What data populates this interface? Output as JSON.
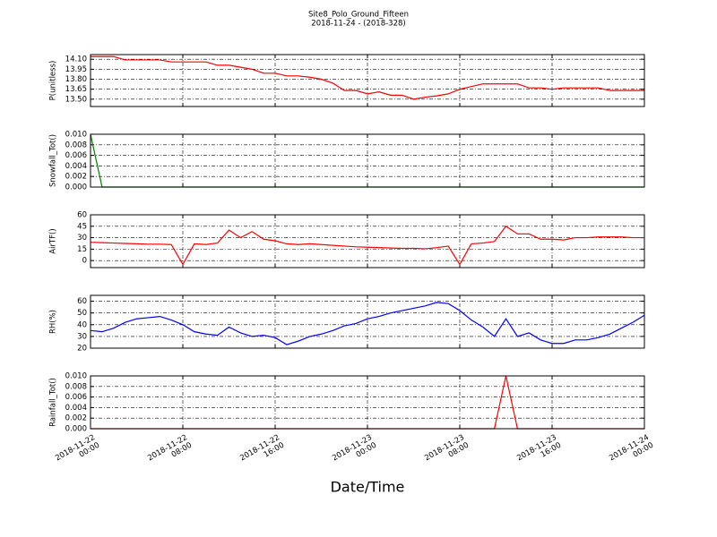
{
  "chart_data": [
    {
      "type": "line",
      "title": "Site8_Polo_Ground_Fifteen",
      "subtitle": "2018-11-24 - (2018-328)",
      "y_label": "P(unitless)",
      "color": "#ff0000",
      "grid": true,
      "xlim": [
        "2018-11-22 00:00",
        "2018-11-24 00:00"
      ],
      "ylim": [
        13.39,
        14.17
      ],
      "yticks": [
        {
          "value": 13.5,
          "label": "13.50"
        },
        13.65,
        {
          "value": 13.8,
          "label": "13.80"
        },
        13.95,
        {
          "value": 14.1,
          "label": "14.10"
        }
      ],
      "x": [
        "2018-11-22 00:00",
        "2018-11-22 01:00",
        "2018-11-22 02:00",
        "2018-11-22 03:00",
        "2018-11-22 04:00",
        "2018-11-22 05:00",
        "2018-11-22 06:00",
        "2018-11-22 07:00",
        "2018-11-22 08:00",
        "2018-11-22 09:00",
        "2018-11-22 10:00",
        "2018-11-22 11:00",
        "2018-11-22 12:00",
        "2018-11-22 13:00",
        "2018-11-22 14:00",
        "2018-11-22 15:00",
        "2018-11-22 16:00",
        "2018-11-22 17:00",
        "2018-11-22 18:00",
        "2018-11-22 19:00",
        "2018-11-22 20:00",
        "2018-11-22 21:00",
        "2018-11-22 22:00",
        "2018-11-22 23:00",
        "2018-11-23 00:00",
        "2018-11-23 01:00",
        "2018-11-23 02:00",
        "2018-11-23 03:00",
        "2018-11-23 04:00",
        "2018-11-23 05:00",
        "2018-11-23 06:00",
        "2018-11-23 07:00",
        "2018-11-23 08:00",
        "2018-11-23 09:00",
        "2018-11-23 10:00",
        "2018-11-23 11:00",
        "2018-11-23 12:00",
        "2018-11-23 13:00",
        "2018-11-23 14:00",
        "2018-11-23 15:00",
        "2018-11-23 16:00",
        "2018-11-23 17:00",
        "2018-11-23 18:00",
        "2018-11-23 19:00",
        "2018-11-23 20:00",
        "2018-11-23 21:00",
        "2018-11-23 22:00",
        "2018-11-23 23:00",
        "2018-11-24 00:00"
      ],
      "values": [
        14.14,
        14.14,
        14.14,
        14.09,
        14.09,
        14.09,
        14.09,
        14.06,
        14.06,
        14.06,
        14.06,
        14.01,
        14.01,
        13.98,
        13.95,
        13.89,
        13.89,
        13.85,
        13.85,
        13.83,
        13.8,
        13.74,
        13.63,
        13.63,
        13.58,
        13.61,
        13.56,
        13.56,
        13.5,
        13.53,
        13.55,
        13.58,
        13.65,
        13.69,
        13.73,
        13.73,
        13.73,
        13.73,
        13.67,
        13.67,
        13.65,
        13.67,
        13.67,
        13.67,
        13.67,
        13.63,
        13.63,
        13.63,
        13.63
      ]
    },
    {
      "type": "line",
      "y_label": "Snowfall_Tot()",
      "color": "#008000",
      "grid": true,
      "xlim": [
        "2018-11-22 00:00",
        "2018-11-24 00:00"
      ],
      "ylim": [
        0,
        0.01
      ],
      "yticks": [
        {
          "value": 0,
          "label": "0.000"
        },
        {
          "value": 0.002,
          "label": "0.002"
        },
        {
          "value": 0.004,
          "label": "0.004"
        },
        {
          "value": 0.006,
          "label": "0.006"
        },
        {
          "value": 0.008,
          "label": "0.008"
        },
        {
          "value": 0.01,
          "label": "0.010"
        }
      ],
      "x": [
        "2018-11-22 00:00",
        "2018-11-22 01:00",
        "2018-11-22 02:00",
        "2018-11-22 03:00",
        "2018-11-22 04:00",
        "2018-11-22 05:00",
        "2018-11-22 06:00",
        "2018-11-22 07:00",
        "2018-11-22 08:00",
        "2018-11-22 09:00",
        "2018-11-22 10:00",
        "2018-11-22 11:00",
        "2018-11-22 12:00",
        "2018-11-22 13:00",
        "2018-11-22 14:00",
        "2018-11-22 15:00",
        "2018-11-22 16:00",
        "2018-11-22 17:00",
        "2018-11-22 18:00",
        "2018-11-22 19:00",
        "2018-11-22 20:00",
        "2018-11-22 21:00",
        "2018-11-22 22:00",
        "2018-11-22 23:00",
        "2018-11-23 00:00",
        "2018-11-23 01:00",
        "2018-11-23 02:00",
        "2018-11-23 03:00",
        "2018-11-23 04:00",
        "2018-11-23 05:00",
        "2018-11-23 06:00",
        "2018-11-23 07:00",
        "2018-11-23 08:00",
        "2018-11-23 09:00",
        "2018-11-23 10:00",
        "2018-11-23 11:00",
        "2018-11-23 12:00",
        "2018-11-23 13:00",
        "2018-11-23 14:00",
        "2018-11-23 15:00",
        "2018-11-23 16:00",
        "2018-11-23 17:00",
        "2018-11-23 18:00",
        "2018-11-23 19:00",
        "2018-11-23 20:00",
        "2018-11-23 21:00",
        "2018-11-23 22:00",
        "2018-11-23 23:00",
        "2018-11-24 00:00"
      ],
      "values": [
        0.01,
        0,
        0,
        0,
        0,
        0,
        0,
        0,
        0,
        0,
        0,
        0,
        0,
        0,
        0,
        0,
        0,
        0,
        0,
        0,
        0,
        0,
        0,
        0,
        0,
        0,
        0,
        0,
        0,
        0,
        0,
        0,
        0,
        0,
        0,
        0,
        0,
        0,
        0,
        0,
        0,
        0,
        0,
        0,
        0,
        0,
        0,
        0,
        0
      ]
    },
    {
      "type": "line",
      "y_label": "AirTF()",
      "color": "#ff0000",
      "grid": true,
      "xlim": [
        "2018-11-22 00:00",
        "2018-11-24 00:00"
      ],
      "ylim": [
        -9.2,
        60
      ],
      "yticks": [
        0,
        15,
        30,
        45,
        60
      ],
      "x": [
        "2018-11-22 00:00",
        "2018-11-22 01:00",
        "2018-11-22 02:00",
        "2018-11-22 03:00",
        "2018-11-22 04:00",
        "2018-11-22 05:00",
        "2018-11-22 06:00",
        "2018-11-22 07:00",
        "2018-11-22 08:00",
        "2018-11-22 09:00",
        "2018-11-22 10:00",
        "2018-11-22 11:00",
        "2018-11-22 12:00",
        "2018-11-22 13:00",
        "2018-11-22 14:00",
        "2018-11-22 15:00",
        "2018-11-22 16:00",
        "2018-11-22 17:00",
        "2018-11-22 18:00",
        "2018-11-22 19:00",
        "2018-11-22 20:00",
        "2018-11-22 21:00",
        "2018-11-22 22:00",
        "2018-11-22 23:00",
        "2018-11-23 00:00",
        "2018-11-23 01:00",
        "2018-11-23 02:00",
        "2018-11-23 03:00",
        "2018-11-23 04:00",
        "2018-11-23 05:00",
        "2018-11-23 06:00",
        "2018-11-23 07:00",
        "2018-11-23 08:00",
        "2018-11-23 09:00",
        "2018-11-23 10:00",
        "2018-11-23 11:00",
        "2018-11-23 12:00",
        "2018-11-23 13:00",
        "2018-11-23 14:00",
        "2018-11-23 15:00",
        "2018-11-23 16:00",
        "2018-11-23 17:00",
        "2018-11-23 18:00",
        "2018-11-23 19:00",
        "2018-11-23 20:00",
        "2018-11-23 21:00",
        "2018-11-23 22:00",
        "2018-11-23 23:00",
        "2018-11-24 00:00"
      ],
      "values": [
        24,
        23.5,
        23,
        22.5,
        22,
        21.5,
        21.5,
        21,
        -5,
        22,
        21,
        23,
        40,
        30,
        38,
        28,
        26,
        22,
        21,
        22,
        21,
        20,
        19,
        18,
        17.5,
        17,
        16.5,
        16,
        16,
        15.5,
        17,
        19,
        -5,
        22,
        23,
        25,
        45,
        35,
        35,
        28,
        28,
        27,
        30,
        30,
        31,
        31,
        31,
        30,
        30
      ]
    },
    {
      "type": "line",
      "y_label": "RH(%)",
      "color": "#0000ff",
      "grid": true,
      "xlim": [
        "2018-11-22 00:00",
        "2018-11-24 00:00"
      ],
      "ylim": [
        20,
        65
      ],
      "yticks": [
        20,
        30,
        40,
        50,
        60
      ],
      "x": [
        "2018-11-22 00:00",
        "2018-11-22 01:00",
        "2018-11-22 02:00",
        "2018-11-22 03:00",
        "2018-11-22 04:00",
        "2018-11-22 05:00",
        "2018-11-22 06:00",
        "2018-11-22 07:00",
        "2018-11-22 08:00",
        "2018-11-22 09:00",
        "2018-11-22 10:00",
        "2018-11-22 11:00",
        "2018-11-22 12:00",
        "2018-11-22 13:00",
        "2018-11-22 14:00",
        "2018-11-22 15:00",
        "2018-11-22 16:00",
        "2018-11-22 17:00",
        "2018-11-22 18:00",
        "2018-11-22 19:00",
        "2018-11-22 20:00",
        "2018-11-22 21:00",
        "2018-11-22 22:00",
        "2018-11-22 23:00",
        "2018-11-23 00:00",
        "2018-11-23 01:00",
        "2018-11-23 02:00",
        "2018-11-23 03:00",
        "2018-11-23 04:00",
        "2018-11-23 05:00",
        "2018-11-23 06:00",
        "2018-11-23 07:00",
        "2018-11-23 08:00",
        "2018-11-23 09:00",
        "2018-11-23 10:00",
        "2018-11-23 11:00",
        "2018-11-23 12:00",
        "2018-11-23 13:00",
        "2018-11-23 14:00",
        "2018-11-23 15:00",
        "2018-11-23 16:00",
        "2018-11-23 17:00",
        "2018-11-23 18:00",
        "2018-11-23 19:00",
        "2018-11-23 20:00",
        "2018-11-23 21:00",
        "2018-11-23 22:00",
        "2018-11-23 23:00",
        "2018-11-24 00:00"
      ],
      "values": [
        35,
        34,
        37,
        42,
        45,
        46,
        47,
        44,
        40,
        34,
        32,
        31,
        38,
        33,
        30,
        31,
        29,
        23,
        26,
        30,
        32,
        35,
        39,
        41,
        45,
        47,
        50,
        52,
        54,
        56,
        59,
        58,
        52,
        44,
        38,
        30,
        45,
        30,
        33,
        27,
        24,
        24,
        27,
        27,
        29,
        32,
        37,
        42,
        48
      ]
    },
    {
      "type": "line",
      "y_label": "Rainfall_Tot()",
      "x_label": "Date/Time",
      "color": "#ff0000",
      "grid": true,
      "xlim": [
        "2018-11-22 00:00",
        "2018-11-24 00:00"
      ],
      "xticks": [
        {
          "value": "2018-11-22 00:00",
          "label": "2018-11-22\n00:00"
        },
        {
          "value": "2018-11-22 08:00",
          "label": "2018-11-22\n08:00"
        },
        {
          "value": "2018-11-22 16:00",
          "label": "2018-11-22\n16:00"
        },
        {
          "value": "2018-11-23 00:00",
          "label": "2018-11-23\n00:00"
        },
        {
          "value": "2018-11-23 08:00",
          "label": "2018-11-23\n08:00"
        },
        {
          "value": "2018-11-23 16:00",
          "label": "2018-11-23\n16:00"
        },
        {
          "value": "2018-11-24 00:00",
          "label": "2018-11-24\n00:00"
        }
      ],
      "ylim": [
        0,
        0.01
      ],
      "yticks": [
        {
          "value": 0,
          "label": "0.000"
        },
        {
          "value": 0.002,
          "label": "0.002"
        },
        {
          "value": 0.004,
          "label": "0.004"
        },
        {
          "value": 0.006,
          "label": "0.006"
        },
        {
          "value": 0.008,
          "label": "0.008"
        },
        {
          "value": 0.01,
          "label": "0.010"
        }
      ],
      "x": [
        "2018-11-22 00:00",
        "2018-11-22 01:00",
        "2018-11-22 02:00",
        "2018-11-22 03:00",
        "2018-11-22 04:00",
        "2018-11-22 05:00",
        "2018-11-22 06:00",
        "2018-11-22 07:00",
        "2018-11-22 08:00",
        "2018-11-22 09:00",
        "2018-11-22 10:00",
        "2018-11-22 11:00",
        "2018-11-22 12:00",
        "2018-11-22 13:00",
        "2018-11-22 14:00",
        "2018-11-22 15:00",
        "2018-11-22 16:00",
        "2018-11-22 17:00",
        "2018-11-22 18:00",
        "2018-11-22 19:00",
        "2018-11-22 20:00",
        "2018-11-22 21:00",
        "2018-11-22 22:00",
        "2018-11-22 23:00",
        "2018-11-23 00:00",
        "2018-11-23 01:00",
        "2018-11-23 02:00",
        "2018-11-23 03:00",
        "2018-11-23 04:00",
        "2018-11-23 05:00",
        "2018-11-23 06:00",
        "2018-11-23 07:00",
        "2018-11-23 08:00",
        "2018-11-23 09:00",
        "2018-11-23 10:00",
        "2018-11-23 11:00",
        "2018-11-23 12:00",
        "2018-11-23 13:00",
        "2018-11-23 14:00",
        "2018-11-23 15:00",
        "2018-11-23 16:00",
        "2018-11-23 17:00",
        "2018-11-23 18:00",
        "2018-11-23 19:00",
        "2018-11-23 20:00",
        "2018-11-23 21:00",
        "2018-11-23 22:00",
        "2018-11-23 23:00",
        "2018-11-24 00:00"
      ],
      "values": [
        0,
        0,
        0,
        0,
        0,
        0,
        0,
        0,
        0,
        0,
        0,
        0,
        0,
        0,
        0,
        0,
        0,
        0,
        0,
        0,
        0,
        0,
        0,
        0,
        0,
        0,
        0,
        0,
        0,
        0,
        0,
        0,
        0,
        0,
        0,
        0,
        0.01,
        0,
        0,
        0,
        0,
        0,
        0,
        0,
        0,
        0,
        0,
        0,
        0
      ]
    }
  ]
}
